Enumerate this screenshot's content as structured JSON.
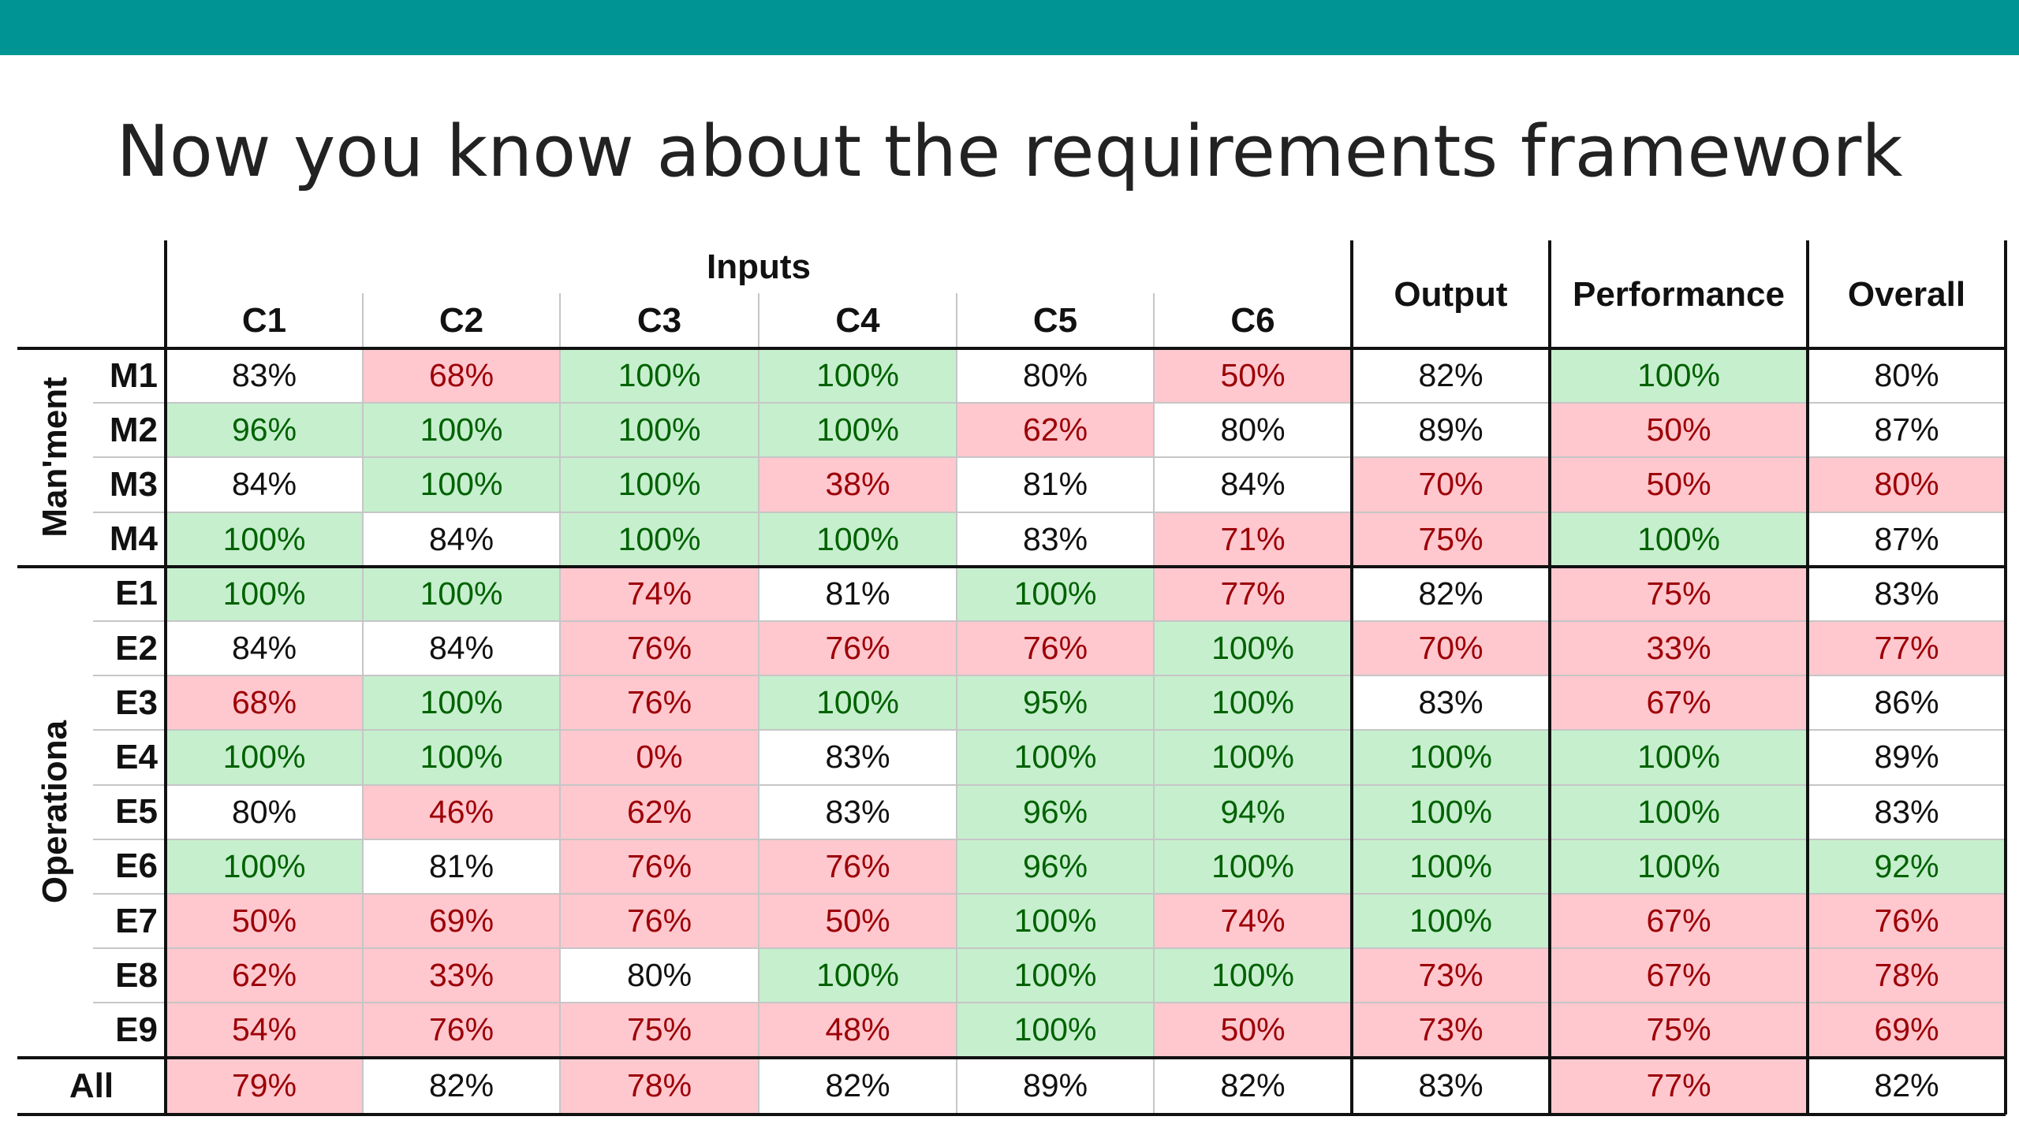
{
  "slide": {
    "title": "Now you know about the requirements framework",
    "accent_color": "#009494"
  },
  "table": {
    "inputs_label": "Inputs",
    "columns": [
      "C1",
      "C2",
      "C3",
      "C4",
      "C5",
      "C6",
      "Output",
      "Performance",
      "Overall"
    ],
    "groups": [
      {
        "label": "Man'ment",
        "rows": 4
      },
      {
        "label": "Operationa",
        "rows": 9
      }
    ],
    "rows": [
      {
        "label": "M1",
        "values": [
          "83%",
          "68%",
          "100%",
          "100%",
          "80%",
          "50%",
          "82%",
          "100%",
          "80%"
        ],
        "status": [
          "n",
          "r",
          "g",
          "g",
          "n",
          "r",
          "n",
          "g",
          "n"
        ]
      },
      {
        "label": "M2",
        "values": [
          "96%",
          "100%",
          "100%",
          "100%",
          "62%",
          "80%",
          "89%",
          "50%",
          "87%"
        ],
        "status": [
          "g",
          "g",
          "g",
          "g",
          "r",
          "n",
          "n",
          "r",
          "n"
        ]
      },
      {
        "label": "M3",
        "values": [
          "84%",
          "100%",
          "100%",
          "38%",
          "81%",
          "84%",
          "70%",
          "50%",
          "80%"
        ],
        "status": [
          "n",
          "g",
          "g",
          "r",
          "n",
          "n",
          "r",
          "r",
          "r"
        ]
      },
      {
        "label": "M4",
        "values": [
          "100%",
          "84%",
          "100%",
          "100%",
          "83%",
          "71%",
          "75%",
          "100%",
          "87%"
        ],
        "status": [
          "g",
          "n",
          "g",
          "g",
          "n",
          "r",
          "r",
          "g",
          "n"
        ]
      },
      {
        "label": "E1",
        "values": [
          "100%",
          "100%",
          "74%",
          "81%",
          "100%",
          "77%",
          "82%",
          "75%",
          "83%"
        ],
        "status": [
          "g",
          "g",
          "r",
          "n",
          "g",
          "r",
          "n",
          "r",
          "n"
        ]
      },
      {
        "label": "E2",
        "values": [
          "84%",
          "84%",
          "76%",
          "76%",
          "76%",
          "100%",
          "70%",
          "33%",
          "77%"
        ],
        "status": [
          "n",
          "n",
          "r",
          "r",
          "r",
          "g",
          "r",
          "r",
          "r"
        ]
      },
      {
        "label": "E3",
        "values": [
          "68%",
          "100%",
          "76%",
          "100%",
          "95%",
          "100%",
          "83%",
          "67%",
          "86%"
        ],
        "status": [
          "r",
          "g",
          "r",
          "g",
          "g",
          "g",
          "n",
          "r",
          "n"
        ]
      },
      {
        "label": "E4",
        "values": [
          "100%",
          "100%",
          "0%",
          "83%",
          "100%",
          "100%",
          "100%",
          "100%",
          "89%"
        ],
        "status": [
          "g",
          "g",
          "r",
          "n",
          "g",
          "g",
          "g",
          "g",
          "n"
        ]
      },
      {
        "label": "E5",
        "values": [
          "80%",
          "46%",
          "62%",
          "83%",
          "96%",
          "94%",
          "100%",
          "100%",
          "83%"
        ],
        "status": [
          "n",
          "r",
          "r",
          "n",
          "g",
          "g",
          "g",
          "g",
          "n"
        ]
      },
      {
        "label": "E6",
        "values": [
          "100%",
          "81%",
          "76%",
          "76%",
          "96%",
          "100%",
          "100%",
          "100%",
          "92%"
        ],
        "status": [
          "g",
          "n",
          "r",
          "r",
          "g",
          "g",
          "g",
          "g",
          "g"
        ]
      },
      {
        "label": "E7",
        "values": [
          "50%",
          "69%",
          "76%",
          "50%",
          "100%",
          "74%",
          "100%",
          "67%",
          "76%"
        ],
        "status": [
          "r",
          "r",
          "r",
          "r",
          "g",
          "r",
          "g",
          "r",
          "r"
        ]
      },
      {
        "label": "E8",
        "values": [
          "62%",
          "33%",
          "80%",
          "100%",
          "100%",
          "100%",
          "73%",
          "67%",
          "78%"
        ],
        "status": [
          "r",
          "r",
          "n",
          "g",
          "g",
          "g",
          "r",
          "r",
          "r"
        ]
      },
      {
        "label": "E9",
        "values": [
          "54%",
          "76%",
          "75%",
          "48%",
          "100%",
          "50%",
          "73%",
          "75%",
          "69%"
        ],
        "status": [
          "r",
          "r",
          "r",
          "r",
          "g",
          "r",
          "r",
          "r",
          "r"
        ]
      }
    ],
    "total_row": {
      "label": "All",
      "values": [
        "79%",
        "82%",
        "78%",
        "82%",
        "89%",
        "82%",
        "83%",
        "77%",
        "82%"
      ],
      "status": [
        "r",
        "n",
        "r",
        "n",
        "n",
        "n",
        "n",
        "r",
        "n"
      ]
    },
    "colors": {
      "good_bg": "#c6efce",
      "good_text": "#006100",
      "bad_bg": "#ffc7ce",
      "bad_text": "#9c0006",
      "neutral_bg": "#ffffff",
      "neutral_text": "#111111"
    }
  }
}
